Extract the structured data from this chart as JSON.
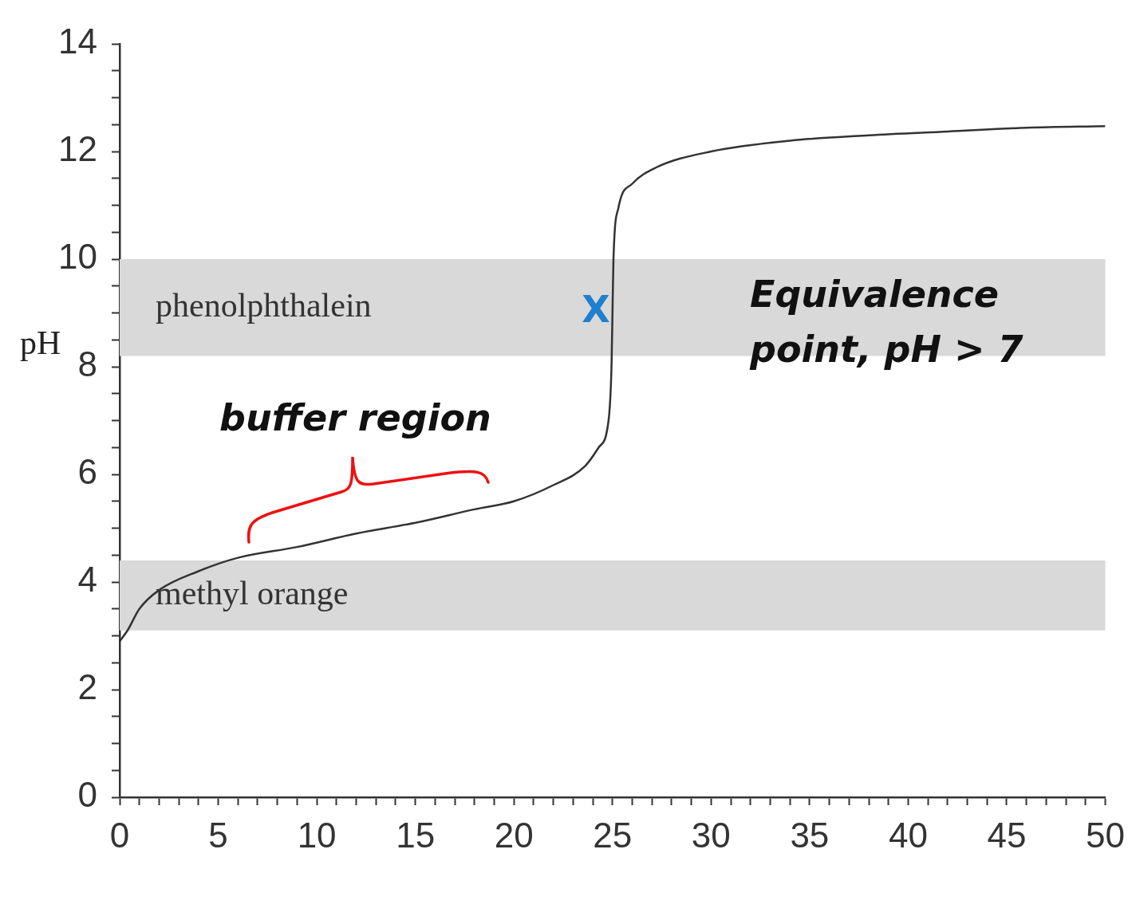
{
  "chart_data": {
    "type": "line",
    "ylabel": "pH",
    "marker": "none",
    "line_style": "solid",
    "grid": false,
    "legend": false,
    "x": [
      0,
      0.4,
      1,
      2,
      4,
      6,
      9,
      12,
      15,
      18,
      20,
      22,
      23.6,
      24.3,
      24.8,
      24.95,
      25,
      25.05,
      25.3,
      26,
      27.2,
      30,
      34,
      38,
      42,
      46,
      50
    ],
    "series": [
      {
        "color": "#333333",
        "values": [
          2.9,
          3.1,
          3.5,
          3.85,
          4.2,
          4.45,
          4.65,
          4.9,
          5.1,
          5.35,
          5.5,
          5.8,
          6.15,
          6.5,
          7.0,
          8.0,
          9.0,
          10.0,
          10.95,
          11.4,
          11.7,
          12.0,
          12.2,
          12.3,
          12.37,
          12.44,
          12.47
        ]
      }
    ],
    "xlim": [
      0,
      50
    ],
    "ylim": [
      0,
      14
    ],
    "xticks": [
      0,
      {
        "value": 1,
        "label": null
      },
      {
        "value": 2,
        "label": null
      },
      {
        "value": 3,
        "label": null
      },
      {
        "value": 4,
        "label": null
      },
      5,
      {
        "value": 6,
        "label": null
      },
      {
        "value": 7,
        "label": null
      },
      {
        "value": 8,
        "label": null
      },
      {
        "value": 9,
        "label": null
      },
      10,
      {
        "value": 11,
        "label": null
      },
      {
        "value": 12,
        "label": null
      },
      {
        "value": 13,
        "label": null
      },
      {
        "value": 14,
        "label": null
      },
      15,
      {
        "value": 16,
        "label": null
      },
      {
        "value": 17,
        "label": null
      },
      {
        "value": 18,
        "label": null
      },
      {
        "value": 19,
        "label": null
      },
      20,
      {
        "value": 21,
        "label": null
      },
      {
        "value": 22,
        "label": null
      },
      {
        "value": 23,
        "label": null
      },
      {
        "value": 24,
        "label": null
      },
      25,
      {
        "value": 26,
        "label": null
      },
      {
        "value": 27,
        "label": null
      },
      {
        "value": 28,
        "label": null
      },
      {
        "value": 29,
        "label": null
      },
      30,
      {
        "value": 31,
        "label": null
      },
      {
        "value": 32,
        "label": null
      },
      {
        "value": 33,
        "label": null
      },
      {
        "value": 34,
        "label": null
      },
      35,
      {
        "value": 36,
        "label": null
      },
      {
        "value": 37,
        "label": null
      },
      {
        "value": 38,
        "label": null
      },
      {
        "value": 39,
        "label": null
      },
      40,
      {
        "value": 41,
        "label": null
      },
      {
        "value": 42,
        "label": null
      },
      {
        "value": 43,
        "label": null
      },
      {
        "value": 44,
        "label": null
      },
      45,
      {
        "value": 46,
        "label": null
      },
      {
        "value": 47,
        "label": null
      },
      {
        "value": 48,
        "label": null
      },
      {
        "value": 49,
        "label": null
      },
      50
    ],
    "yticks": [
      0,
      {
        "value": 0.5,
        "label": null
      },
      {
        "value": 1,
        "label": null
      },
      {
        "value": 1.5,
        "label": null
      },
      2,
      {
        "value": 2.5,
        "label": null
      },
      {
        "value": 3,
        "label": null
      },
      {
        "value": 3.5,
        "label": null
      },
      4,
      {
        "value": 4.5,
        "label": null
      },
      {
        "value": 5,
        "label": null
      },
      {
        "value": 5.5,
        "label": null
      },
      6,
      {
        "value": 6.5,
        "label": null
      },
      {
        "value": 7,
        "label": null
      },
      {
        "value": 7.5,
        "label": null
      },
      8,
      {
        "value": 8.5,
        "label": null
      },
      {
        "value": 9,
        "label": null
      },
      {
        "value": 9.5,
        "label": null
      },
      10,
      {
        "value": 10.5,
        "label": null
      },
      {
        "value": 11,
        "label": null
      },
      {
        "value": 11.5,
        "label": null
      },
      12,
      {
        "value": 12.5,
        "label": null
      },
      {
        "value": 13,
        "label": null
      },
      {
        "value": 13.5,
        "label": null
      },
      14
    ],
    "bands": [
      {
        "axis": "y",
        "from": 8.2,
        "to": 10,
        "label": "phenolphthalein",
        "color": "#d9d9d9"
      },
      {
        "axis": "y",
        "from": 3.1,
        "to": 4.4,
        "label": "methyl orange",
        "color": "#d9d9d9"
      }
    ],
    "annotations": [
      "buffer region",
      {
        "text": "X",
        "x": 25,
        "y": 9
      },
      "Equivalence point, pH > 7"
    ]
  }
}
